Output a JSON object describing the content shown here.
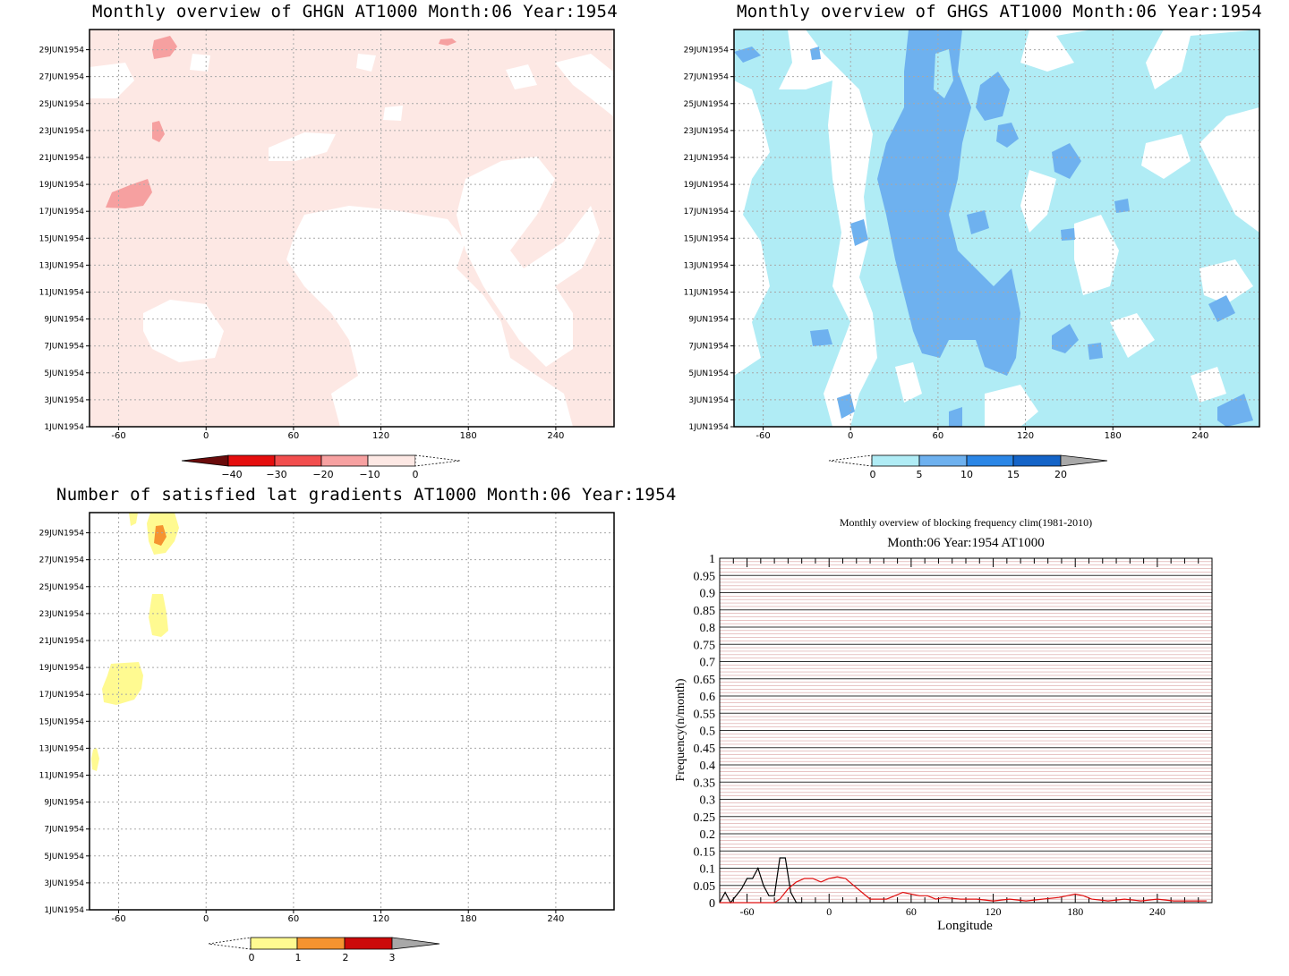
{
  "panels": {
    "ghgn": {
      "title": "Monthly overview of GHGN AT1000 Month:06 Year:1954",
      "colorbar": {
        "labels": [
          "−40",
          "−30",
          "−20",
          "−10",
          "0"
        ],
        "colors": [
          "#6a0b0b",
          "#e50e0e",
          "#f24e4e",
          "#f7a1a1",
          "#fde8e4"
        ]
      }
    },
    "ghgs": {
      "title": "Monthly overview of GHGS AT1000 Month:06 Year:1954",
      "colorbar": {
        "labels": [
          "0",
          "5",
          "10",
          "15",
          "20"
        ],
        "colors": [
          "#b0ecf5",
          "#6eb1ef",
          "#2b86e6",
          "#1464c8",
          "#a8a8a8"
        ]
      }
    },
    "lat": {
      "title": "Number of satisfied lat gradients AT1000 Month:06 Year:1954",
      "colorbar": {
        "labels": [
          "0",
          "1",
          "2",
          "3"
        ],
        "colors": [
          "#fffa91",
          "#f59330",
          "#cc0a0a",
          "#a8a8a8"
        ]
      }
    },
    "freq": {
      "title": "Monthly overview of blocking frequency clim(1981-2010)",
      "subtitle": "Month:06 Year:1954  AT1000",
      "xlabel": "Longitude",
      "ylabel": "Frequency(n/month)"
    }
  },
  "map_axes": {
    "yticks": [
      "29JUN1954",
      "27JUN1954",
      "25JUN1954",
      "23JUN1954",
      "21JUN1954",
      "19JUN1954",
      "17JUN1954",
      "15JUN1954",
      "13JUN1954",
      "11JUN1954",
      "9JUN1954",
      "7JUN1954",
      "5JUN1954",
      "3JUN1954",
      "1JUN1954"
    ],
    "xticks": [
      "-60",
      "0",
      "60",
      "120",
      "180",
      "240"
    ]
  },
  "chart_data": {
    "type": "line",
    "title": "Monthly overview of blocking frequency clim(1981-2010)",
    "subtitle": "Month:06 Year:1954  AT1000",
    "xlabel": "Longitude",
    "ylabel": "Frequency(n/month)",
    "xlim": [
      -80,
      280
    ],
    "ylim": [
      0,
      1
    ],
    "xticks": [
      -60,
      0,
      60,
      120,
      180,
      240
    ],
    "yticks": [
      0,
      0.05,
      0.1,
      0.15,
      0.2,
      0.25,
      0.3,
      0.35,
      0.4,
      0.45,
      0.5,
      0.55,
      0.6,
      0.65,
      0.7,
      0.75,
      0.8,
      0.85,
      0.9,
      0.95,
      1
    ],
    "series": [
      {
        "color": "#000000",
        "x": [
          -80,
          -76,
          -72,
          -68,
          -64,
          -60,
          -56,
          -52,
          -48,
          -44,
          -40,
          -36,
          -32,
          -28,
          -24,
          -20
        ],
        "y": [
          0,
          0.03,
          0,
          0.02,
          0.04,
          0.07,
          0.07,
          0.1,
          0.05,
          0.02,
          0.02,
          0.13,
          0.13,
          0.03,
          0,
          0
        ]
      },
      {
        "color": "#e01010",
        "x": [
          -80,
          -60,
          -50,
          -44,
          -40,
          -36,
          -30,
          -24,
          -18,
          -12,
          -6,
          0,
          6,
          12,
          18,
          24,
          30,
          36,
          42,
          48,
          54,
          60,
          66,
          72,
          78,
          84,
          96,
          108,
          120,
          132,
          144,
          156,
          168,
          174,
          180,
          186,
          192,
          204,
          216,
          228,
          240,
          252,
          264,
          276
        ],
        "y": [
          0,
          0,
          0,
          0,
          0,
          0.01,
          0.04,
          0.06,
          0.07,
          0.07,
          0.06,
          0.07,
          0.075,
          0.07,
          0.05,
          0.03,
          0.01,
          0.01,
          0.01,
          0.02,
          0.03,
          0.025,
          0.02,
          0.02,
          0.01,
          0.015,
          0.01,
          0.01,
          0.005,
          0.01,
          0.005,
          0.01,
          0.015,
          0.02,
          0.025,
          0.02,
          0.01,
          0.005,
          0.01,
          0.005,
          0.01,
          0.005,
          0.005,
          0.005
        ]
      }
    ]
  }
}
